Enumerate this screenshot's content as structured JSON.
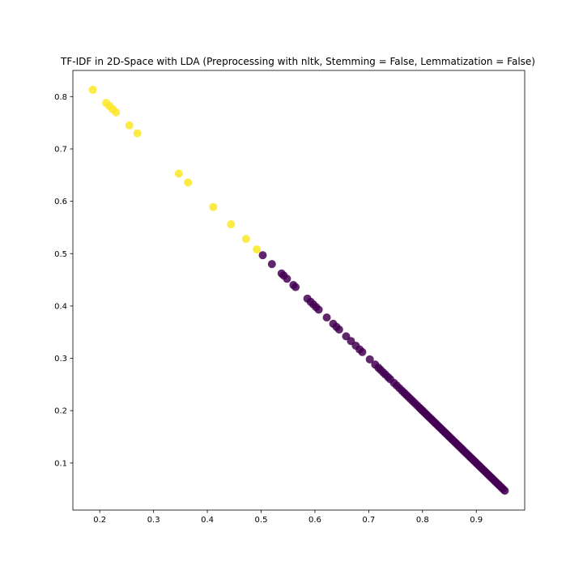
{
  "chart_data": {
    "type": "scatter",
    "title": "TF-IDF in 2D-Space with LDA (Preprocessing with nltk, Stemming = False, Lemmatization = False)",
    "xlabel": "",
    "ylabel": "",
    "xlim": [
      0.15,
      0.99
    ],
    "ylim": [
      0.01,
      0.85
    ],
    "xticks": [
      0.2,
      0.3,
      0.4,
      0.5,
      0.6,
      0.7,
      0.8,
      0.9
    ],
    "xtick_labels": [
      "0.2",
      "0.3",
      "0.4",
      "0.5",
      "0.6",
      "0.7",
      "0.8",
      "0.9"
    ],
    "yticks": [
      0.1,
      0.2,
      0.3,
      0.4,
      0.5,
      0.6,
      0.7,
      0.8
    ],
    "ytick_labels": [
      "0.1",
      "0.2",
      "0.3",
      "0.4",
      "0.5",
      "0.6",
      "0.7",
      "0.8"
    ],
    "grid": false,
    "colors": {
      "cluster_0": "#440154",
      "cluster_1": "#fde725"
    },
    "series": [
      {
        "color": "#fde725",
        "points": [
          [
            0.187,
            0.813
          ],
          [
            0.212,
            0.788
          ],
          [
            0.218,
            0.782
          ],
          [
            0.224,
            0.776
          ],
          [
            0.23,
            0.77
          ],
          [
            0.255,
            0.745
          ],
          [
            0.27,
            0.73
          ],
          [
            0.347,
            0.653
          ],
          [
            0.364,
            0.636
          ],
          [
            0.411,
            0.589
          ],
          [
            0.444,
            0.556
          ],
          [
            0.472,
            0.528
          ],
          [
            0.492,
            0.508
          ]
        ]
      },
      {
        "color": "#440154",
        "points": [
          [
            0.503,
            0.497
          ],
          [
            0.52,
            0.48
          ],
          [
            0.538,
            0.462
          ],
          [
            0.542,
            0.458
          ],
          [
            0.548,
            0.452
          ],
          [
            0.56,
            0.44
          ],
          [
            0.564,
            0.436
          ],
          [
            0.586,
            0.414
          ],
          [
            0.592,
            0.408
          ],
          [
            0.597,
            0.403
          ],
          [
            0.602,
            0.398
          ],
          [
            0.607,
            0.393
          ],
          [
            0.622,
            0.378
          ],
          [
            0.634,
            0.366
          ],
          [
            0.64,
            0.36
          ],
          [
            0.645,
            0.355
          ],
          [
            0.658,
            0.342
          ],
          [
            0.667,
            0.333
          ],
          [
            0.676,
            0.324
          ],
          [
            0.683,
            0.317
          ],
          [
            0.688,
            0.312
          ],
          [
            0.702,
            0.298
          ],
          [
            0.712,
            0.288
          ],
          [
            0.718,
            0.282
          ],
          [
            0.722,
            0.278
          ],
          [
            0.727,
            0.273
          ],
          [
            0.731,
            0.269
          ],
          [
            0.736,
            0.264
          ],
          [
            0.74,
            0.26
          ],
          [
            0.747,
            0.253
          ],
          [
            0.752,
            0.248
          ],
          [
            0.757,
            0.243
          ],
          [
            0.762,
            0.238
          ],
          [
            0.766,
            0.234
          ],
          [
            0.77,
            0.23
          ],
          [
            0.774,
            0.226
          ],
          [
            0.778,
            0.222
          ],
          [
            0.782,
            0.218
          ],
          [
            0.786,
            0.214
          ],
          [
            0.79,
            0.21
          ],
          [
            0.794,
            0.206
          ],
          [
            0.797,
            0.203
          ],
          [
            0.8,
            0.2
          ],
          [
            0.803,
            0.197
          ],
          [
            0.806,
            0.194
          ],
          [
            0.809,
            0.191
          ],
          [
            0.812,
            0.188
          ],
          [
            0.815,
            0.185
          ],
          [
            0.818,
            0.182
          ],
          [
            0.821,
            0.179
          ],
          [
            0.824,
            0.176
          ],
          [
            0.827,
            0.173
          ],
          [
            0.83,
            0.17
          ],
          [
            0.833,
            0.167
          ],
          [
            0.836,
            0.164
          ],
          [
            0.839,
            0.161
          ],
          [
            0.842,
            0.158
          ],
          [
            0.845,
            0.155
          ],
          [
            0.848,
            0.152
          ],
          [
            0.851,
            0.149
          ],
          [
            0.854,
            0.146
          ],
          [
            0.857,
            0.143
          ],
          [
            0.86,
            0.14
          ],
          [
            0.863,
            0.137
          ],
          [
            0.866,
            0.134
          ],
          [
            0.869,
            0.131
          ],
          [
            0.872,
            0.128
          ],
          [
            0.875,
            0.125
          ],
          [
            0.878,
            0.122
          ],
          [
            0.881,
            0.119
          ],
          [
            0.884,
            0.116
          ],
          [
            0.887,
            0.113
          ],
          [
            0.89,
            0.11
          ],
          [
            0.893,
            0.107
          ],
          [
            0.896,
            0.104
          ],
          [
            0.899,
            0.101
          ],
          [
            0.902,
            0.098
          ],
          [
            0.905,
            0.095
          ],
          [
            0.908,
            0.092
          ],
          [
            0.911,
            0.089
          ],
          [
            0.914,
            0.086
          ],
          [
            0.917,
            0.083
          ],
          [
            0.92,
            0.08
          ],
          [
            0.923,
            0.077
          ],
          [
            0.926,
            0.074
          ],
          [
            0.929,
            0.071
          ],
          [
            0.932,
            0.068
          ],
          [
            0.935,
            0.065
          ],
          [
            0.938,
            0.062
          ],
          [
            0.941,
            0.059
          ],
          [
            0.944,
            0.056
          ],
          [
            0.947,
            0.053
          ],
          [
            0.95,
            0.05
          ],
          [
            0.953,
            0.047
          ]
        ]
      }
    ]
  }
}
